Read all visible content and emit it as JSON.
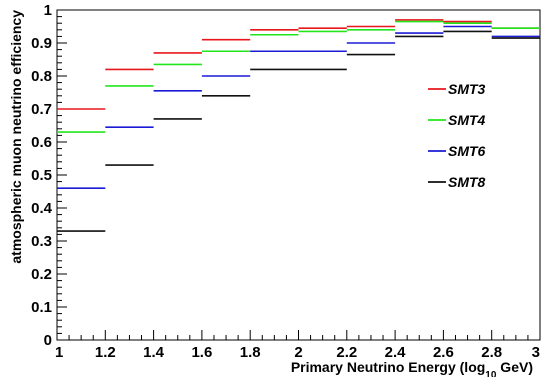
{
  "chart_data": {
    "type": "line",
    "step": true,
    "xlabel_main": "Primary Neutrino Energy (log",
    "xlabel_sub": "10",
    "xlabel_tail": " GeV)",
    "ylabel": "atmospheric muon neutrino efficiency",
    "xlim": [
      1,
      3
    ],
    "ylim": [
      0,
      1
    ],
    "x_ticks": [
      "1",
      "1.2",
      "1.4",
      "1.6",
      "1.8",
      "2",
      "2.2",
      "2.4",
      "2.6",
      "2.8",
      "3"
    ],
    "y_ticks": [
      "0",
      "0.1",
      "0.2",
      "0.3",
      "0.4",
      "0.5",
      "0.6",
      "0.7",
      "0.8",
      "0.9",
      "1"
    ],
    "bin_edges": [
      1.0,
      1.2,
      1.4,
      1.6,
      1.8,
      2.0,
      2.2,
      2.4,
      2.6,
      2.8,
      3.0
    ],
    "legend_position": "right",
    "series": [
      {
        "name": "SMT3",
        "color": "#e8171b",
        "values": [
          0.7,
          0.82,
          0.87,
          0.91,
          0.94,
          0.945,
          0.95,
          0.97,
          0.965,
          0.945
        ]
      },
      {
        "name": "SMT4",
        "color": "#22e61c",
        "values": [
          0.63,
          0.77,
          0.835,
          0.875,
          0.925,
          0.935,
          0.94,
          0.965,
          0.96,
          0.945
        ]
      },
      {
        "name": "SMT6",
        "color": "#1b1bd6",
        "values": [
          0.46,
          0.645,
          0.755,
          0.8,
          0.875,
          0.875,
          0.9,
          0.93,
          0.95,
          0.92
        ]
      },
      {
        "name": "SMT8",
        "color": "#111111",
        "values": [
          0.33,
          0.53,
          0.67,
          0.74,
          0.82,
          0.82,
          0.865,
          0.92,
          0.935,
          0.915
        ]
      }
    ]
  }
}
